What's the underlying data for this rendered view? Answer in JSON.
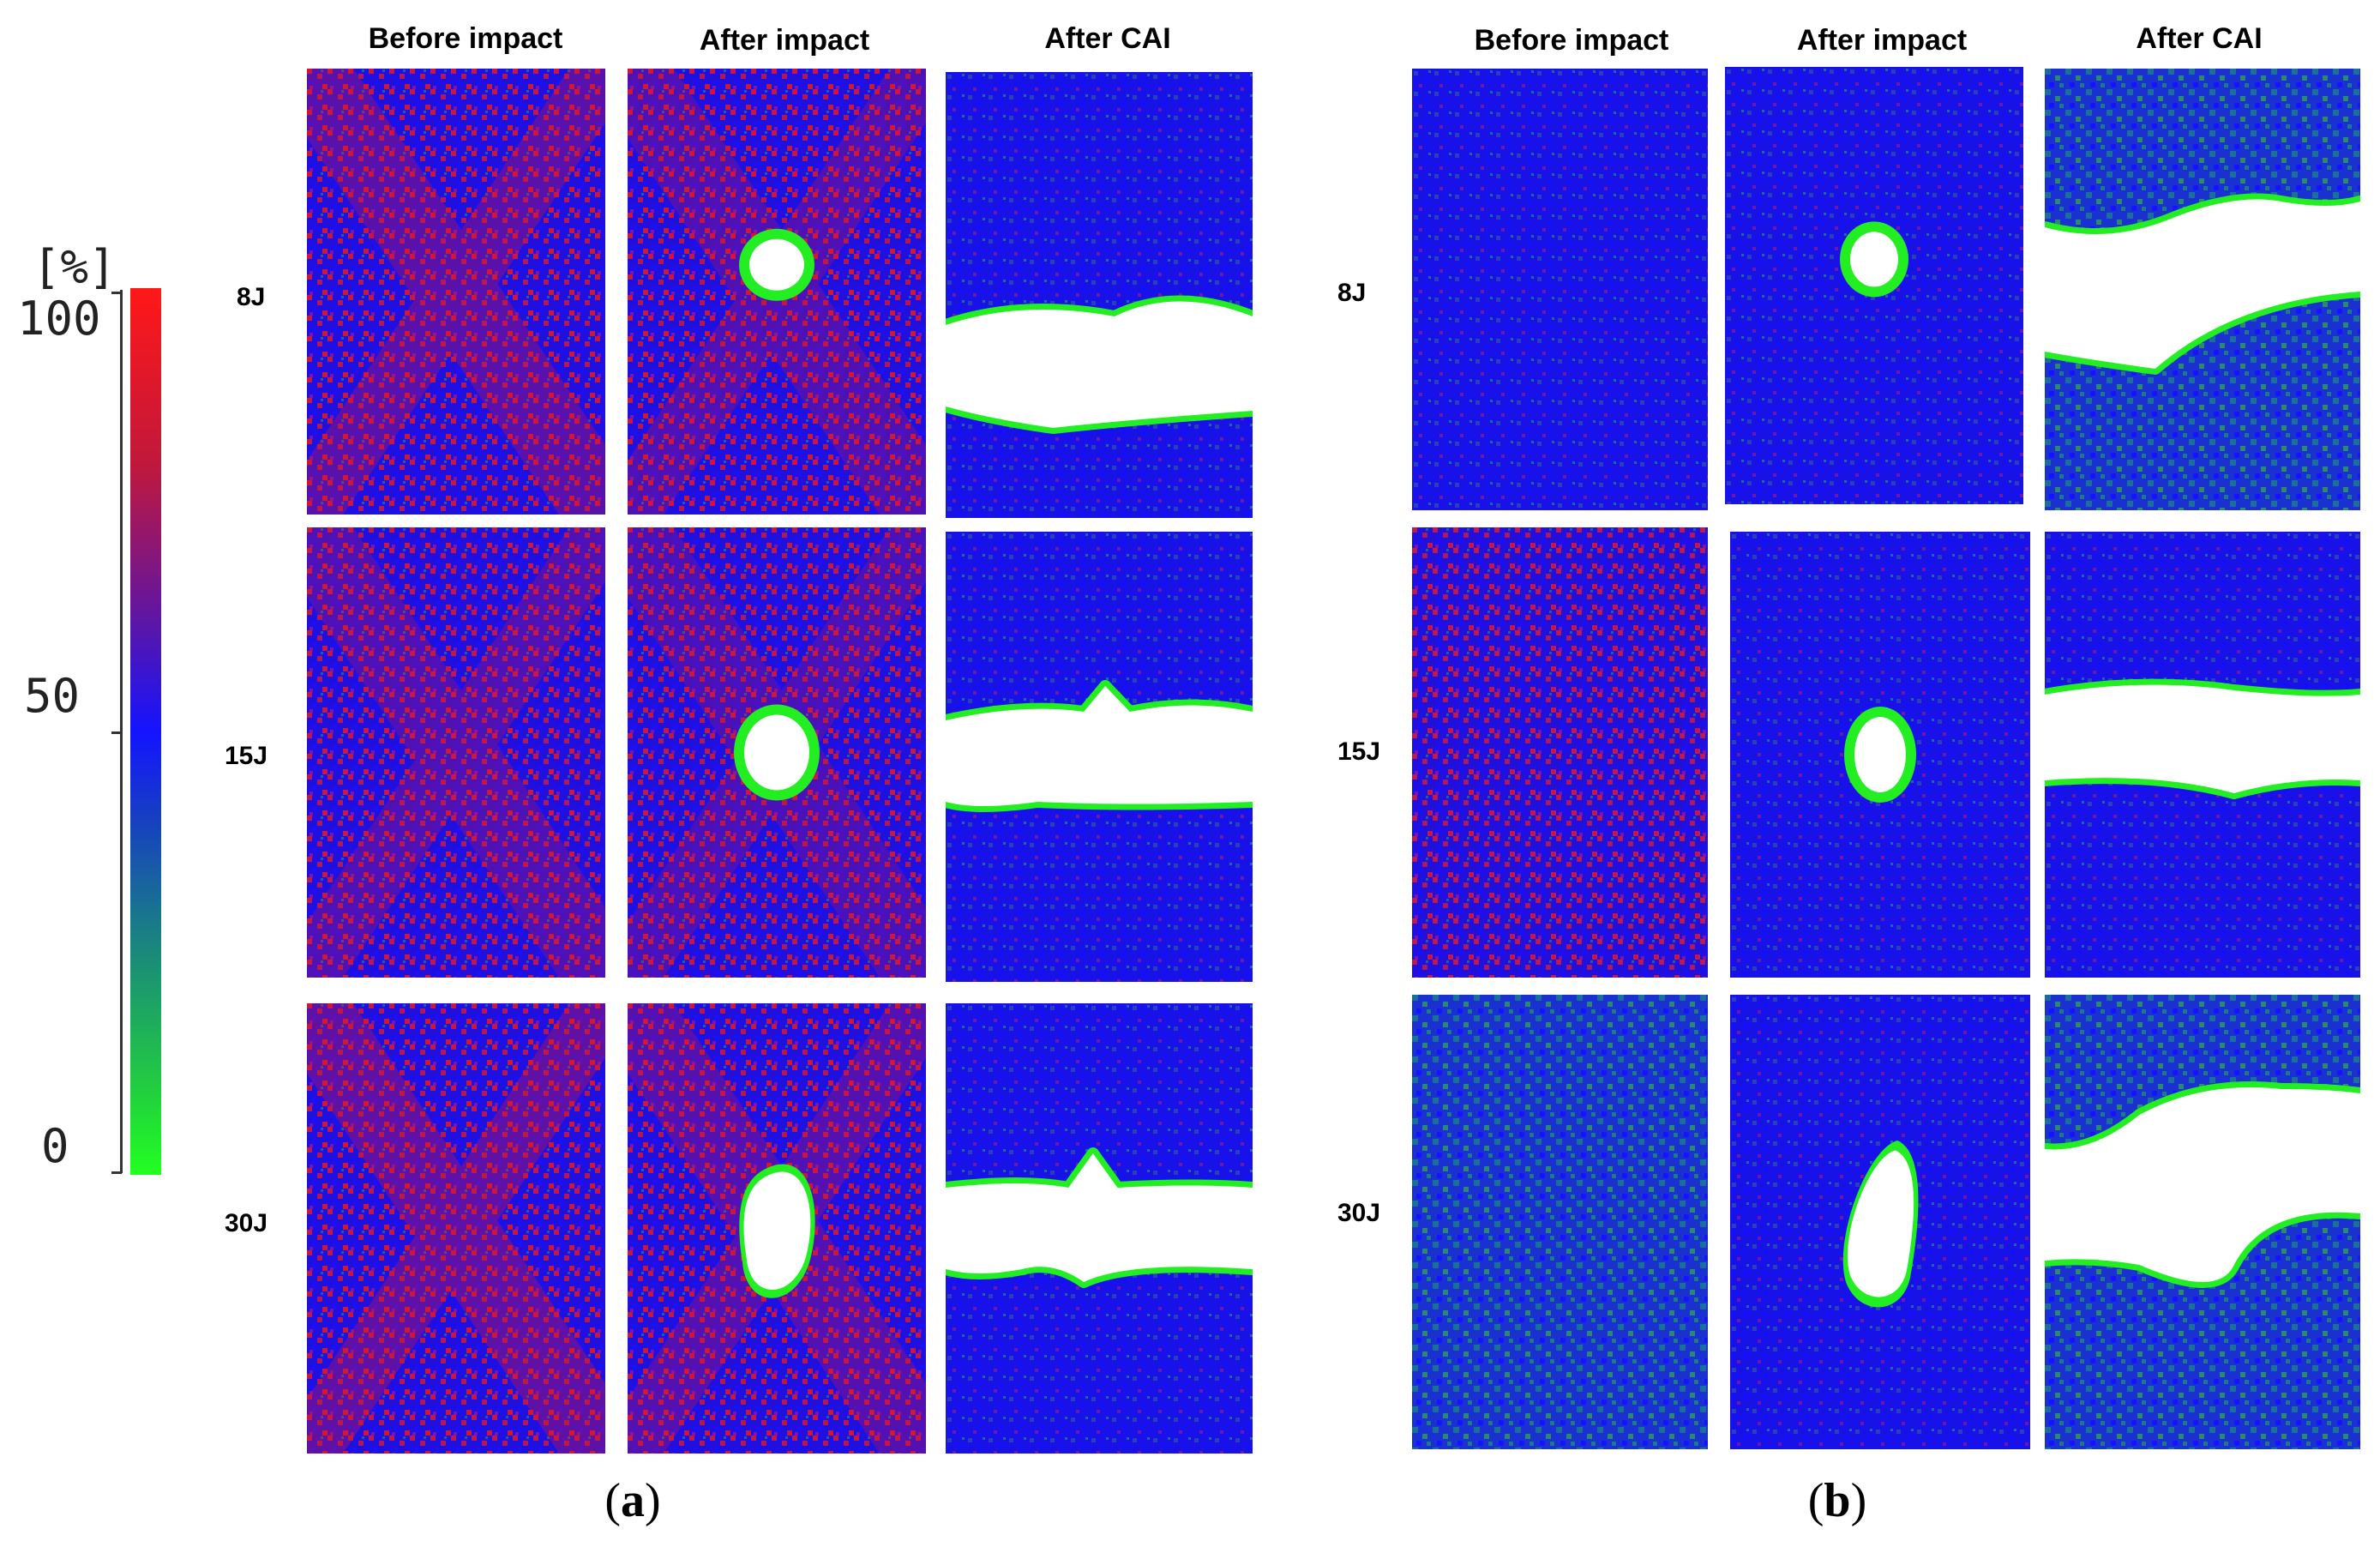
{
  "colorbar": {
    "unit": "[%]",
    "ticks": [
      "100",
      "50",
      "0"
    ],
    "colors": [
      "#ff1a1a",
      "#1a1aff",
      "#22ff22"
    ]
  },
  "column_headers": [
    "Before impact",
    "After impact",
    "After CAI"
  ],
  "row_labels": [
    "8J",
    "15J",
    "30J"
  ],
  "subfigures": [
    {
      "caption_letter": "a"
    },
    {
      "caption_letter": "b"
    }
  ],
  "colors": {
    "red": "#e01530",
    "blue": "#1410e0",
    "green": "#22ee22",
    "white": "#ffffff"
  }
}
